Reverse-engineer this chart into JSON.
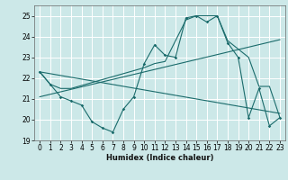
{
  "xlabel": "Humidex (Indice chaleur)",
  "bg_color": "#cce8e8",
  "grid_color": "#ffffff",
  "line_color": "#1a6b6b",
  "xlim": [
    -0.5,
    23.5
  ],
  "ylim": [
    19,
    25.5
  ],
  "yticks": [
    19,
    20,
    21,
    22,
    23,
    24,
    25
  ],
  "xticks": [
    0,
    1,
    2,
    3,
    4,
    5,
    6,
    7,
    8,
    9,
    10,
    11,
    12,
    13,
    14,
    15,
    16,
    17,
    18,
    19,
    20,
    21,
    22,
    23
  ],
  "line1_x": [
    0,
    1,
    2,
    3,
    4,
    5,
    6,
    7,
    8,
    9,
    10,
    11,
    12,
    13,
    14,
    15,
    16,
    17,
    18,
    19,
    20,
    21,
    22,
    23
  ],
  "line1_y": [
    22.3,
    21.7,
    21.1,
    20.9,
    20.7,
    19.9,
    19.6,
    19.4,
    20.5,
    21.1,
    22.7,
    23.6,
    23.1,
    23.0,
    24.9,
    25.0,
    24.7,
    25.0,
    23.7,
    23.0,
    20.1,
    21.5,
    19.7,
    20.1
  ],
  "line2_x": [
    0,
    1,
    2,
    3,
    10,
    11,
    12,
    14,
    15,
    17,
    18,
    20,
    21,
    22,
    23
  ],
  "line2_y": [
    22.3,
    21.7,
    21.5,
    21.5,
    22.5,
    22.7,
    22.8,
    24.8,
    25.0,
    25.0,
    23.8,
    23.0,
    21.6,
    21.6,
    20.1
  ],
  "line3_x": [
    0,
    23
  ],
  "line3_y": [
    21.1,
    23.85
  ],
  "line4_x": [
    0,
    23
  ],
  "line4_y": [
    22.3,
    20.3
  ]
}
